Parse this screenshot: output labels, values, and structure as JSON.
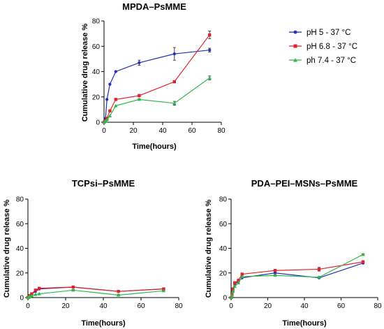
{
  "legend": [
    {
      "label": "pH 5 - 37 °C",
      "color": "#1f2fb8"
    },
    {
      "label": "pH 6.8 - 37 °C",
      "color": "#e0222a"
    },
    {
      "label": "ph 7.4 - 37 °C",
      "color": "#2fb84a"
    }
  ],
  "chart_data": [
    {
      "type": "line",
      "title": "MPDA–PsMME",
      "xlabel": "Time(hours)",
      "ylabel": "Cumulative drug release %",
      "xlim": [
        0,
        80
      ],
      "ylim": [
        0,
        80
      ],
      "xticks": [
        0,
        20,
        40,
        60,
        80
      ],
      "yticks": [
        0,
        20,
        40,
        60,
        80
      ],
      "grid": false,
      "series": [
        {
          "name": "pH 5 - 37 °C",
          "color": "#1f2fb8",
          "x": [
            0,
            0.5,
            1,
            2,
            4,
            8,
            24,
            48,
            72
          ],
          "y": [
            0,
            1,
            3,
            18,
            30,
            40,
            47,
            54,
            57
          ],
          "err": [
            0,
            0,
            0,
            0,
            0,
            0,
            2,
            5,
            1.5
          ]
        },
        {
          "name": "pH 6.8 - 37 °C",
          "color": "#e0222a",
          "x": [
            0,
            0.5,
            1,
            2,
            4,
            8,
            24,
            48,
            72
          ],
          "y": [
            0,
            0.5,
            1,
            3,
            9,
            18,
            21,
            32,
            69
          ],
          "err": [
            0,
            0,
            0,
            0,
            0,
            0,
            1,
            0.5,
            3
          ]
        },
        {
          "name": "ph 7.4 - 37 °C",
          "color": "#2fb84a",
          "x": [
            0,
            0.5,
            1,
            2,
            4,
            8,
            24,
            48,
            72
          ],
          "y": [
            0,
            0.5,
            1,
            2,
            5,
            13,
            18,
            15,
            35
          ],
          "err": [
            0,
            0,
            0,
            0,
            0,
            0,
            0.5,
            1.5,
            1.5
          ]
        }
      ]
    },
    {
      "type": "line",
      "title": "TCPsi–PsMME",
      "xlabel": "Time(hours)",
      "ylabel": "Cumulative drug release %",
      "xlim": [
        0,
        80
      ],
      "ylim": [
        0,
        80
      ],
      "xticks": [
        0,
        20,
        40,
        60,
        80
      ],
      "yticks": [
        0,
        20,
        40,
        60,
        80
      ],
      "grid": false,
      "series": [
        {
          "name": "pH 5 - 37 °C",
          "color": "#1f2fb8",
          "x": [
            0,
            0.5,
            1,
            2,
            4,
            6,
            24,
            48,
            72
          ],
          "y": [
            0,
            0.5,
            1.5,
            3,
            5,
            7,
            8.5,
            5,
            7
          ],
          "err": [
            0,
            0,
            0,
            0,
            0,
            0,
            0.5,
            0.5,
            0.5
          ]
        },
        {
          "name": "pH 6.8 - 37 °C",
          "color": "#e0222a",
          "x": [
            0,
            0.5,
            1,
            2,
            4,
            6,
            24,
            48,
            72
          ],
          "y": [
            0,
            0.5,
            1.5,
            3,
            6,
            7.5,
            8.5,
            5,
            7
          ],
          "err": [
            0,
            0,
            0,
            0,
            0,
            0,
            0.5,
            0.5,
            0.5
          ]
        },
        {
          "name": "ph 7.4 - 37 °C",
          "color": "#2fb84a",
          "x": [
            0,
            0.5,
            1,
            2,
            4,
            6,
            24,
            48,
            72
          ],
          "y": [
            0,
            0.3,
            0.8,
            1.5,
            2.5,
            3,
            6,
            2,
            5.5
          ],
          "err": [
            0,
            0,
            0,
            0,
            0,
            0,
            0.5,
            0.5,
            0.5
          ]
        }
      ]
    },
    {
      "type": "line",
      "title": "PDA–PEI–MSNs–PsMME",
      "xlabel": "Time(hours)",
      "ylabel": "Cumulative drug release %",
      "xlim": [
        0,
        80
      ],
      "ylim": [
        0,
        80
      ],
      "xticks": [
        0,
        20,
        40,
        60,
        80
      ],
      "yticks": [
        0,
        20,
        40,
        60,
        80
      ],
      "grid": false,
      "series": [
        {
          "name": "pH 5 - 37 °C",
          "color": "#1f2fb8",
          "x": [
            0,
            0.5,
            1,
            2,
            4,
            6,
            24,
            48,
            72
          ],
          "y": [
            0,
            2,
            5,
            11,
            13,
            16,
            20,
            16,
            28
          ],
          "err": [
            0,
            0,
            0,
            0,
            0,
            0,
            0.5,
            0.5,
            0.5
          ]
        },
        {
          "name": "pH 6.8 - 37 °C",
          "color": "#e0222a",
          "x": [
            0,
            0.5,
            1,
            2,
            4,
            6,
            24,
            48,
            72
          ],
          "y": [
            0,
            3,
            7,
            12,
            14,
            19,
            22,
            23,
            29
          ],
          "err": [
            0,
            0,
            0,
            0,
            0,
            0,
            1,
            1.5,
            1
          ]
        },
        {
          "name": "ph 7.4 - 37 °C",
          "color": "#2fb84a",
          "x": [
            0,
            0.5,
            1,
            2,
            4,
            6,
            24,
            48,
            72
          ],
          "y": [
            0,
            2,
            5,
            9,
            12,
            17,
            18,
            16.5,
            35
          ],
          "err": [
            0,
            0,
            0,
            0,
            0,
            0,
            0.5,
            0.5,
            0.5
          ]
        }
      ]
    }
  ]
}
